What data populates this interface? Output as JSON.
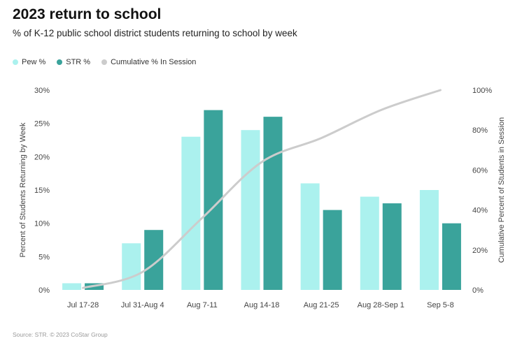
{
  "header": {
    "title": "2023 return to school",
    "subtitle": "% of K-12 public school district students returning to school by week"
  },
  "legend": {
    "items": [
      {
        "label": "Pew %",
        "color": "#abf1ee"
      },
      {
        "label": "STR %",
        "color": "#3aa39b"
      },
      {
        "label": "Cumulative % In Session",
        "color": "#cccccc"
      }
    ]
  },
  "footer": {
    "source": "Source: STR. © 2023 CoStar Group"
  },
  "chart_data": {
    "type": "bar",
    "title": "2023 return to school",
    "categories": [
      "Jul 17-28",
      "Jul 31-Aug 4",
      "Aug 7-11",
      "Aug 14-18",
      "Aug 21-25",
      "Aug 28-Sep 1",
      "Sep 5-8"
    ],
    "series": [
      {
        "name": "Pew %",
        "type": "bar",
        "axis": "left",
        "color": "#abf1ee",
        "values": [
          1,
          7,
          23,
          24,
          16,
          14,
          15
        ]
      },
      {
        "name": "STR %",
        "type": "bar",
        "axis": "left",
        "color": "#3aa39b",
        "values": [
          1,
          9,
          27,
          26,
          12,
          13,
          10
        ]
      },
      {
        "name": "Cumulative % In Session",
        "type": "line",
        "axis": "right",
        "color": "#cccccc",
        "values": [
          1,
          9,
          36,
          64,
          76,
          90,
          100
        ]
      }
    ],
    "ylabel": "Percent of Students Returning by Week",
    "ylabel_right": "Cumulative Percent of Students in Session",
    "ylim": [
      0,
      30
    ],
    "ylim_right": [
      0,
      100
    ],
    "yticks": [
      "0%",
      "5%",
      "10%",
      "15%",
      "20%",
      "25%",
      "30%"
    ],
    "yticks_right": [
      "0%",
      "20%",
      "40%",
      "60%",
      "80%",
      "100%"
    ],
    "grid": false,
    "legend_position": "top-left"
  }
}
